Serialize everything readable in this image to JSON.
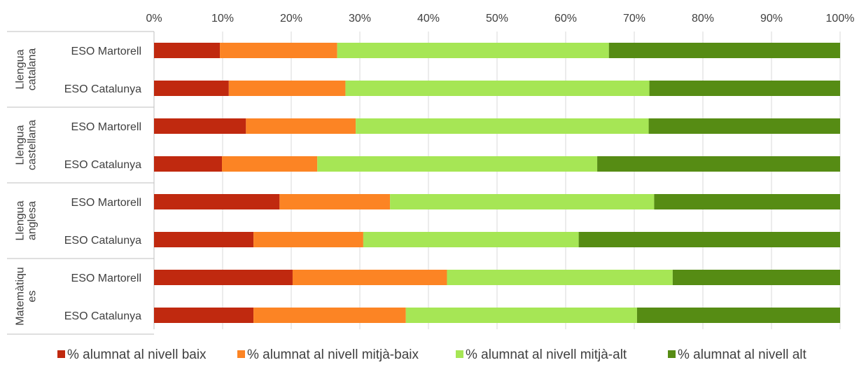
{
  "chart_data": {
    "type": "bar",
    "orientation": "horizontal",
    "stacked": "100%",
    "title": "",
    "xlabel": "",
    "ylabel": "",
    "xlim": [
      0,
      100
    ],
    "x_ticks": [
      "0%",
      "10%",
      "20%",
      "30%",
      "40%",
      "50%",
      "60%",
      "70%",
      "80%",
      "90%",
      "100%"
    ],
    "x_axis_position": "top",
    "grid": true,
    "legend_position": "bottom",
    "groups": [
      {
        "label": "Llengua catalana",
        "label_lines": [
          "Llengua",
          "catalana"
        ]
      },
      {
        "label": "Llengua castellana",
        "label_lines": [
          "Llengua",
          "castellana"
        ]
      },
      {
        "label": "Llengua anglesa",
        "label_lines": [
          "Llengua",
          "anglesa"
        ]
      },
      {
        "label": "Matemàtiques",
        "label_lines": [
          "Matemàtiqu",
          "es"
        ]
      }
    ],
    "categories": [
      "ESO Martorell",
      "ESO Catalunya",
      "ESO Martorell",
      "ESO Catalunya",
      "ESO Martorell",
      "ESO Catalunya",
      "ESO Martorell",
      "ESO Catalunya"
    ],
    "category_group": [
      0,
      0,
      1,
      1,
      2,
      2,
      3,
      3
    ],
    "series": [
      {
        "name": "% alumnat al nivell baix",
        "color": "#c0290f",
        "values": [
          9.6,
          10.9,
          13.4,
          9.9,
          18.3,
          14.5,
          20.2,
          14.5
        ]
      },
      {
        "name": "% alumnat al nivell mitjà-baix",
        "color": "#fc8424",
        "values": [
          17.1,
          17.0,
          16.0,
          13.9,
          16.1,
          16.0,
          22.5,
          22.2
        ]
      },
      {
        "name": "% alumnat al nivell mitjà-alt",
        "color": "#a6e655",
        "values": [
          39.6,
          44.3,
          42.7,
          40.8,
          38.5,
          31.4,
          32.9,
          33.7
        ]
      },
      {
        "name": "% alumnat al nivell alt",
        "color": "#568c14",
        "values": [
          33.7,
          27.8,
          27.9,
          35.4,
          27.1,
          38.1,
          24.4,
          29.6
        ]
      }
    ]
  }
}
